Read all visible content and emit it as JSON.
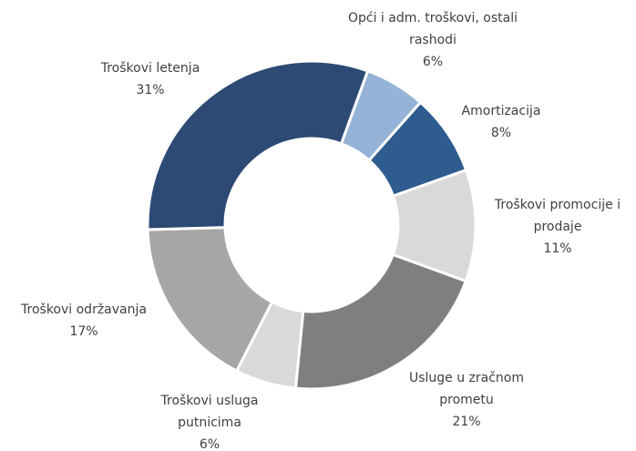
{
  "chart_data": {
    "type": "donut",
    "categories": [
      "Opći i adm. troškovi, ostali rashodi",
      "Amortizacija",
      "Troškovi promocije i prodaje",
      "Usluge u zračnom prometu",
      "Troškovi usluga putnicima",
      "Troškovi održavanja",
      "Troškovi letenja"
    ],
    "values": [
      6,
      8,
      11,
      21,
      6,
      17,
      31
    ],
    "value_labels": [
      "6%",
      "8%",
      "11%",
      "21%",
      "6%",
      "17%",
      "31%"
    ],
    "colors": [
      "#95b3d7",
      "#2e5c8f",
      "#d9d9d9",
      "#7f7f7f",
      "#d9d9d9",
      "#a6a6a6",
      "#2c4a74"
    ]
  }
}
